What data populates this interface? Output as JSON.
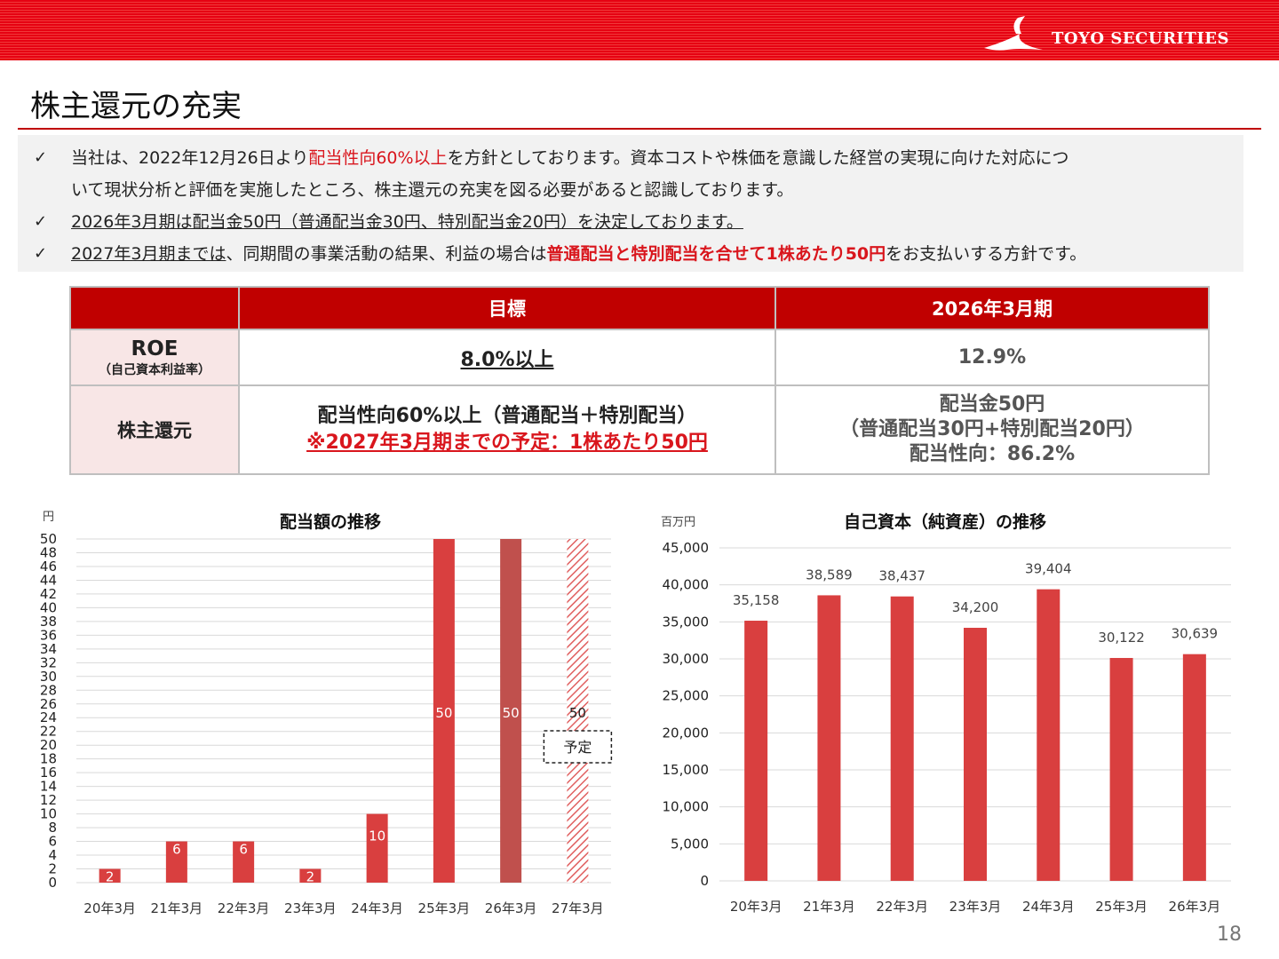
{
  "header": {
    "logo_text": "TOYO SECURITIES"
  },
  "title": "株主還元の充実",
  "bullets": {
    "b1_pre": "当社は、2022年12月26日より",
    "b1_red": "配当性向60%以上",
    "b1_post": "を方針としております。資本コストや株価を意識した経営の実現に向けた対応につ",
    "b1_line2": "いて現状分析と評価を実施したところ、株主還元の充実を図る必要があると認識しております。",
    "b2": "2026年3月期は配当金50円（普通配当金30円、特別配当金20円）を決定しております。",
    "b3_under": "2027年3月期までは",
    "b3_mid": "、同期間の事業活動の結果、利益の場合は",
    "b3_red": "普通配当と特別配当を合せて1株あたり50円",
    "b3_post": "をお支払いする方針です。"
  },
  "table": {
    "col_target": "目標",
    "col_period": "2026年3月期",
    "roe_label": "ROE",
    "roe_sub": "（自己資本利益率）",
    "roe_target": "8.0%以上",
    "roe_value": "12.9%",
    "return_label": "株主還元",
    "return_target_1": "配当性向60%以上（普通配当＋特別配当）",
    "return_target_2": "※2027年3月期までの予定：1株あたり50円",
    "return_value_1": "配当金50円",
    "return_value_2": "（普通配当30円+特別配当20円）",
    "return_value_3": "配当性向：86.2%"
  },
  "chart_data": [
    {
      "type": "bar",
      "title": "配当額の推移",
      "ylabel": "円",
      "categories": [
        "20年3月",
        "21年3月",
        "22年3月",
        "23年3月",
        "24年3月",
        "25年3月",
        "26年3月",
        "27年3月"
      ],
      "values": [
        2,
        6,
        6,
        2,
        10,
        50,
        50,
        50
      ],
      "data_labels": [
        "2",
        "6",
        "6",
        "2",
        "10",
        "50",
        "50",
        "50"
      ],
      "ylim": [
        0,
        50
      ],
      "yticks": [
        0,
        2,
        4,
        6,
        8,
        10,
        12,
        14,
        16,
        18,
        20,
        22,
        24,
        26,
        28,
        30,
        32,
        34,
        36,
        38,
        40,
        42,
        44,
        46,
        48,
        50
      ],
      "annotation": "予定",
      "grid": true
    },
    {
      "type": "bar",
      "title": "自己資本（純資産）の推移",
      "ylabel": "百万円",
      "categories": [
        "20年3月",
        "21年3月",
        "22年3月",
        "23年3月",
        "24年3月",
        "25年3月",
        "26年3月"
      ],
      "values": [
        35158,
        38589,
        38437,
        34200,
        39404,
        30122,
        30639
      ],
      "data_labels": [
        "35,158",
        "38,589",
        "38,437",
        "34,200",
        "39,404",
        "30,122",
        "30,639"
      ],
      "ylim": [
        0,
        45000
      ],
      "yticks": [
        0,
        5000,
        10000,
        15000,
        20000,
        25000,
        30000,
        35000,
        40000,
        45000
      ],
      "ytick_labels": [
        "0",
        "5,000",
        "10,000",
        "15,000",
        "20,000",
        "25,000",
        "30,000",
        "35,000",
        "40,000",
        "45,000"
      ],
      "grid": true
    }
  ],
  "colors": {
    "accent": "#e60012",
    "bar": "#d93f3f",
    "bar_dark": "#c0504d",
    "table_header": "#c00000"
  },
  "page_number": "18"
}
